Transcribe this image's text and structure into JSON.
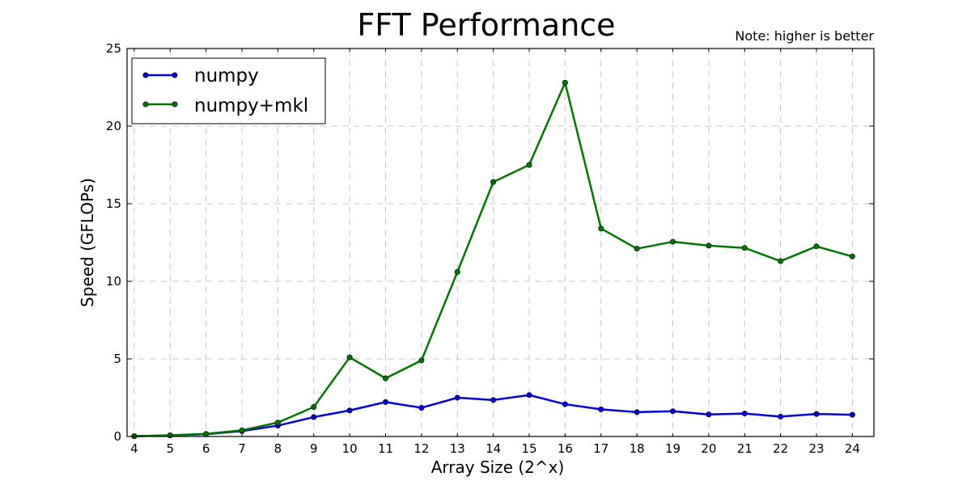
{
  "chart_data": {
    "type": "line",
    "title": "FFT Performance",
    "note": "Note: higher is better",
    "xlabel": "Array Size (2^x)",
    "ylabel": "Speed (GFLOPs)",
    "xlim": [
      3.8,
      24.6
    ],
    "ylim": [
      0,
      25
    ],
    "grid": true,
    "legend_position": "top-left",
    "x": [
      4,
      5,
      6,
      7,
      8,
      9,
      10,
      11,
      12,
      13,
      14,
      15,
      16,
      17,
      18,
      19,
      20,
      21,
      22,
      23,
      24
    ],
    "x_ticks": [
      "4",
      "5",
      "6",
      "7",
      "8",
      "9",
      "10",
      "11",
      "12",
      "13",
      "14",
      "15",
      "16",
      "17",
      "18",
      "19",
      "20",
      "21",
      "22",
      "23",
      "24"
    ],
    "y_ticks": [
      "0",
      "5",
      "10",
      "15",
      "20",
      "25"
    ],
    "series": [
      {
        "name": "numpy",
        "color": "#0000dd",
        "values": [
          0.02,
          0.07,
          0.15,
          0.35,
          0.7,
          1.25,
          1.68,
          2.22,
          1.85,
          2.5,
          2.35,
          2.67,
          2.08,
          1.75,
          1.57,
          1.63,
          1.42,
          1.48,
          1.28,
          1.45,
          1.4
        ]
      },
      {
        "name": "numpy+mkl",
        "color": "#007700",
        "values": [
          0.02,
          0.08,
          0.17,
          0.4,
          0.9,
          1.9,
          5.1,
          3.75,
          4.9,
          10.6,
          16.4,
          17.5,
          22.8,
          13.4,
          12.1,
          12.55,
          12.3,
          12.15,
          11.3,
          12.25,
          11.6
        ]
      }
    ]
  }
}
